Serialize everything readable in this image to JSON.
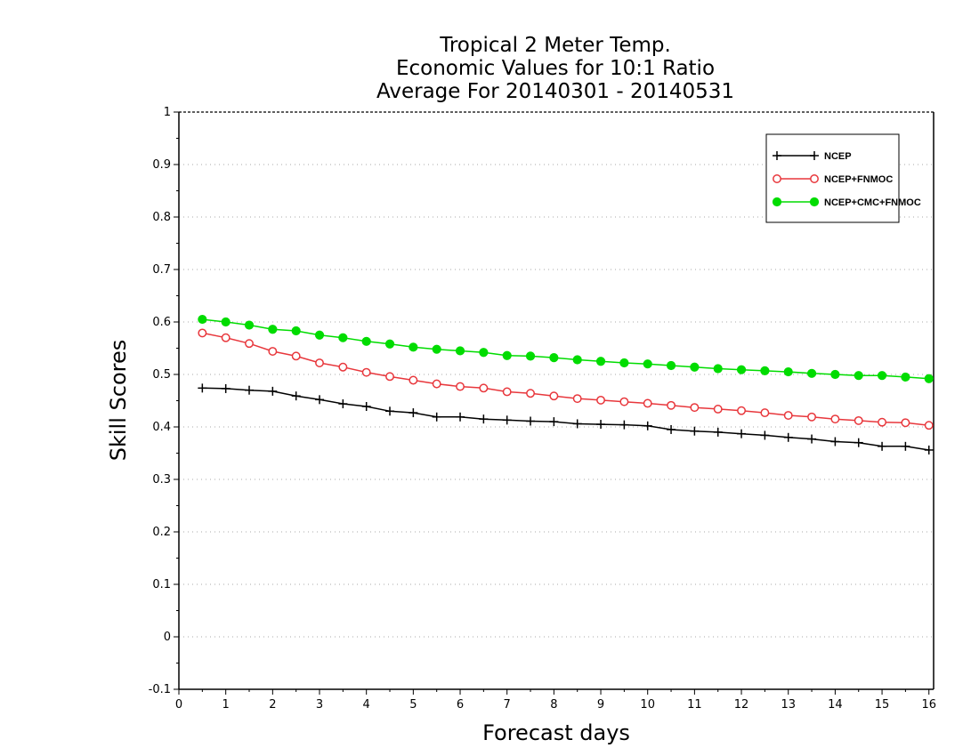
{
  "chart_data": {
    "type": "line",
    "title": [
      "Tropical 2 Meter Temp.",
      "Economic Values for 10:1 Ratio",
      "Average For 20140301 - 20140531"
    ],
    "xlabel": "Forecast days",
    "ylabel": "Skill Scores",
    "xlim": [
      0,
      16.1
    ],
    "ylim": [
      -0.1,
      1
    ],
    "x_ticks": [
      0,
      1,
      2,
      3,
      4,
      5,
      6,
      7,
      8,
      9,
      10,
      11,
      12,
      13,
      14,
      15,
      16
    ],
    "y_ticks": [
      -0.1,
      0,
      0.1,
      0.2,
      0.3,
      0.4,
      0.5,
      0.6,
      0.7,
      0.8,
      0.9,
      1
    ],
    "y_tick_labels": [
      "-0.1",
      "0",
      "0.1",
      "0.2",
      "0.3",
      "0.4",
      "0.5",
      "0.6",
      "0.7",
      "0.8",
      "0.9",
      "1"
    ],
    "grid": "horizontal dotted",
    "legend_position": "top-right",
    "x": [
      0.5,
      1,
      1.5,
      2,
      2.5,
      3,
      3.5,
      4,
      4.5,
      5,
      5.5,
      6,
      6.5,
      7,
      7.5,
      8,
      8.5,
      9,
      9.5,
      10,
      10.5,
      11,
      11.5,
      12,
      12.5,
      13,
      13.5,
      14,
      14.5,
      15,
      15.5,
      16
    ],
    "series": [
      {
        "name": "NCEP",
        "color": "#000000",
        "marker": "plus",
        "values": [
          0.474,
          0.473,
          0.47,
          0.468,
          0.459,
          0.452,
          0.444,
          0.439,
          0.43,
          0.427,
          0.419,
          0.419,
          0.415,
          0.413,
          0.411,
          0.41,
          0.406,
          0.405,
          0.404,
          0.402,
          0.395,
          0.392,
          0.39,
          0.387,
          0.384,
          0.38,
          0.377,
          0.372,
          0.37,
          0.363,
          0.363,
          0.356
        ]
      },
      {
        "name": "NCEP+FNMOC",
        "color": "#e8373c",
        "marker": "open-circle",
        "values": [
          0.579,
          0.57,
          0.559,
          0.544,
          0.535,
          0.522,
          0.514,
          0.504,
          0.496,
          0.489,
          0.482,
          0.477,
          0.474,
          0.467,
          0.464,
          0.459,
          0.454,
          0.451,
          0.448,
          0.445,
          0.441,
          0.437,
          0.434,
          0.431,
          0.427,
          0.422,
          0.419,
          0.415,
          0.412,
          0.409,
          0.408,
          0.403
        ]
      },
      {
        "name": "NCEP+CMC+FNMOC",
        "color": "#00dc00",
        "marker": "filled-circle",
        "values": [
          0.605,
          0.6,
          0.594,
          0.586,
          0.583,
          0.575,
          0.57,
          0.563,
          0.558,
          0.552,
          0.548,
          0.545,
          0.542,
          0.536,
          0.535,
          0.532,
          0.528,
          0.525,
          0.522,
          0.52,
          0.517,
          0.514,
          0.511,
          0.509,
          0.507,
          0.505,
          0.502,
          0.5,
          0.498,
          0.498,
          0.495,
          0.492
        ]
      }
    ]
  }
}
